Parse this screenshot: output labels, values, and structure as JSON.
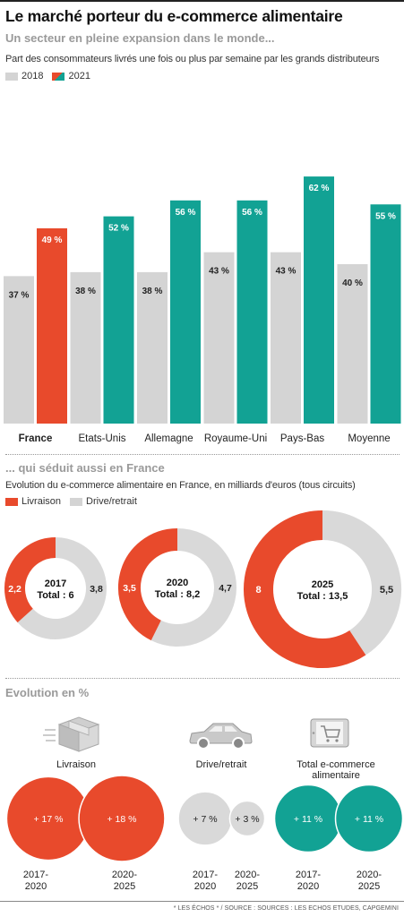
{
  "header": {
    "title": "Le marché porteur du e-commerce alimentaire",
    "subtitle1": "Un secteur en pleine expansion dans le monde...",
    "description1": "Part des consommateurs livrés une fois ou plus par semaine par les grands distributeurs",
    "legend_2018": "2018",
    "legend_2021": "2021",
    "subtitle2": "... qui séduit aussi en France",
    "description2": "Evolution du e-commerce alimentaire en France, en milliards d'euros (tous circuits)",
    "legend_livraison": "Livraison",
    "legend_drive": "Drive/retrait",
    "subtitle3": "Evolution en %"
  },
  "colors": {
    "grey": "#d4d4d4",
    "red": "#e84a2c",
    "teal": "#12a294",
    "light_grey": "#d9d9d9"
  },
  "chart_data": [
    {
      "type": "bar",
      "categories": [
        "France",
        "Etats-Unis",
        "Allemagne",
        "Royaume-Uni",
        "Pays-Bas",
        "Moyenne"
      ],
      "series": [
        {
          "name": "2018",
          "values": [
            37,
            38,
            38,
            43,
            43,
            40
          ]
        },
        {
          "name": "2021",
          "values": [
            49,
            52,
            56,
            56,
            62,
            55
          ]
        }
      ],
      "labels_2018": [
        "37 %",
        "38 %",
        "38 %",
        "43 %",
        "43 %",
        "40 %"
      ],
      "labels_2021": [
        "49 %",
        "52 %",
        "56 %",
        "56 %",
        "62 %",
        "55 %"
      ],
      "ylim": [
        0,
        70
      ],
      "highlight": "France"
    },
    {
      "type": "pie",
      "donuts": [
        {
          "year": "2017",
          "total_label": "Total : 6",
          "livraison": 2.2,
          "drive": 3.8,
          "livraison_label": "2,2",
          "drive_label": "3,8"
        },
        {
          "year": "2020",
          "total_label": "Total : 8,2",
          "livraison": 3.5,
          "drive": 4.7,
          "livraison_label": "3,5",
          "drive_label": "4,7"
        },
        {
          "year": "2025",
          "total_label": "Total : 13,5",
          "livraison": 8,
          "drive": 5.5,
          "livraison_label": "8",
          "drive_label": "5,5"
        }
      ]
    },
    {
      "type": "bubble",
      "groups": [
        {
          "name": "Livraison",
          "icon": "box-icon",
          "color": "#e84a2c",
          "values": [
            17,
            18
          ],
          "labels": [
            "+ 17 %",
            "+ 18 %"
          ],
          "periods": [
            "2017-\n2020",
            "2020-\n2025"
          ]
        },
        {
          "name": "Drive/retrait",
          "icon": "car-icon",
          "color": "#d9d9d9",
          "values": [
            7,
            3
          ],
          "labels": [
            "+ 7 %",
            "+ 3 %"
          ],
          "periods": [
            "2017-\n2020",
            "2020-\n2025"
          ]
        },
        {
          "name": "Total e-commerce\nalimentaire",
          "icon": "tablet-cart-icon",
          "color": "#12a294",
          "values": [
            11,
            11
          ],
          "labels": [
            "+ 11 %",
            "+ 11 %"
          ],
          "periods": [
            "2017-\n2020",
            "2020-\n2025"
          ]
        }
      ]
    }
  ],
  "footer": {
    "source": "* LES ÉCHOS * / SOURCE : SOURCES : LES ECHOS ETUDES, CAPGEMINI"
  }
}
